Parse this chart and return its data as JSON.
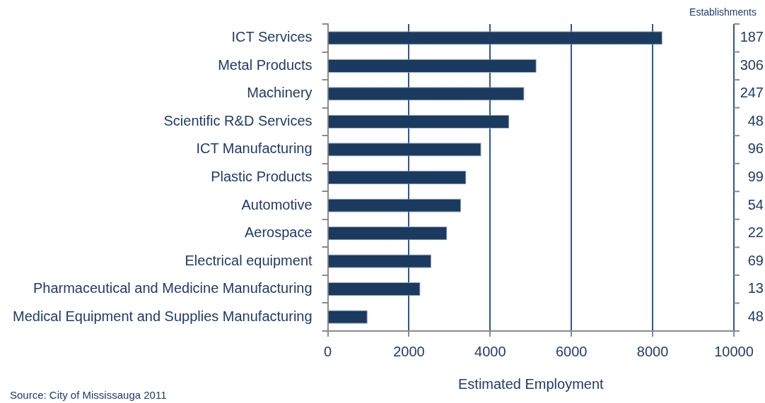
{
  "chart_data": {
    "type": "bar",
    "orientation": "horizontal",
    "xlabel": "Estimated Employment",
    "y2label": "Establishments",
    "categories": [
      "ICT Services",
      "Metal Products",
      "Machinery",
      "Scientific R&D Services",
      "ICT Manufacturing",
      "Plastic Products",
      "Automotive",
      "Aerospace",
      "Electrical equipment",
      "Pharmaceutical and Medicine Manufacturing",
      "Medical Equipment and Supplies Manufacturing"
    ],
    "values": [
      8240,
      5140,
      4840,
      4470,
      3780,
      3410,
      3280,
      2940,
      2550,
      2280,
      980
    ],
    "color": "#1b3a5f",
    "xlim": [
      0,
      10000
    ],
    "xticks": [
      0,
      2000,
      4000,
      6000,
      8000,
      10000
    ],
    "grid": "x",
    "legend": false,
    "annotations": [
      "187",
      "306",
      "247",
      "48",
      "96",
      "99",
      "54",
      "22",
      "69",
      "13",
      "48",
      "Source: City of Mississauga 2011"
    ]
  }
}
